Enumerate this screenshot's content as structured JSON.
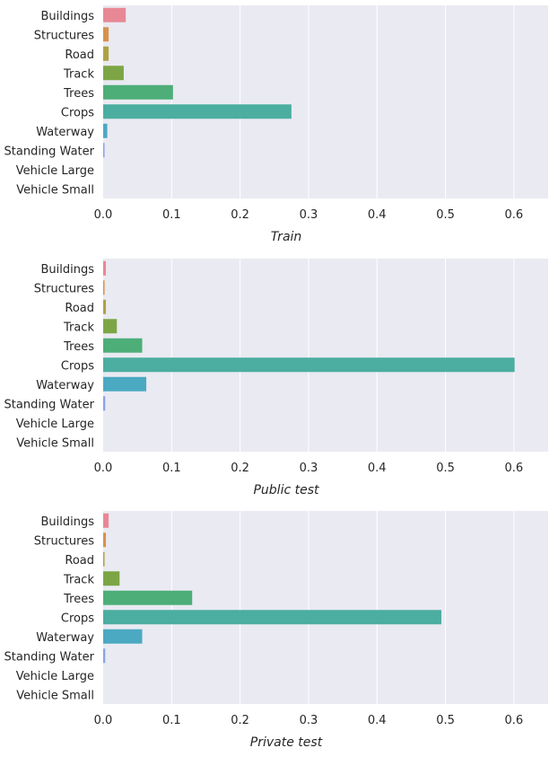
{
  "chart_data": [
    {
      "type": "bar",
      "orientation": "horizontal",
      "categories": [
        "Buildings",
        "Structures",
        "Road",
        "Track",
        "Trees",
        "Crops",
        "Waterway",
        "Standing Water",
        "Vehicle Large",
        "Vehicle Small"
      ],
      "values": [
        0.033,
        0.008,
        0.008,
        0.03,
        0.102,
        0.275,
        0.006,
        0.002,
        0.0,
        0.0
      ],
      "xlabel": "Train",
      "xlim": [
        0,
        0.65
      ],
      "xticks": [
        "0.0",
        "0.1",
        "0.2",
        "0.3",
        "0.4",
        "0.5",
        "0.6"
      ],
      "grid": true
    },
    {
      "type": "bar",
      "orientation": "horizontal",
      "categories": [
        "Buildings",
        "Structures",
        "Road",
        "Track",
        "Trees",
        "Crops",
        "Waterway",
        "Standing Water",
        "Vehicle Large",
        "Vehicle Small"
      ],
      "values": [
        0.004,
        0.002,
        0.004,
        0.02,
        0.057,
        0.601,
        0.063,
        0.003,
        0.0,
        0.0
      ],
      "xlabel": "Public test",
      "xlim": [
        0,
        0.65
      ],
      "xticks": [
        "0.0",
        "0.1",
        "0.2",
        "0.3",
        "0.4",
        "0.5",
        "0.6"
      ],
      "grid": true
    },
    {
      "type": "bar",
      "orientation": "horizontal",
      "categories": [
        "Buildings",
        "Structures",
        "Road",
        "Track",
        "Trees",
        "Crops",
        "Waterway",
        "Standing Water",
        "Vehicle Large",
        "Vehicle Small"
      ],
      "values": [
        0.008,
        0.004,
        0.002,
        0.024,
        0.13,
        0.494,
        0.057,
        0.003,
        0.0,
        0.0
      ],
      "xlabel": "Private test",
      "xlim": [
        0,
        0.65
      ],
      "xticks": [
        "0.0",
        "0.1",
        "0.2",
        "0.3",
        "0.4",
        "0.5",
        "0.6"
      ],
      "grid": true
    }
  ],
  "colors": {
    "background": "#eaeaf2",
    "grid": "#ffffff",
    "text": "#262626",
    "bars": [
      "#e88895",
      "#d7924c",
      "#aea244",
      "#7ca645",
      "#4dae78",
      "#4baea0",
      "#4ba9c2",
      "#8aa2e7",
      "#c59be8",
      "#e48ed3"
    ]
  }
}
